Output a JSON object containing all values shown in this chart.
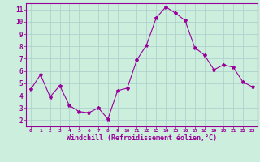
{
  "x": [
    0,
    1,
    2,
    3,
    4,
    5,
    6,
    7,
    8,
    9,
    10,
    11,
    12,
    13,
    14,
    15,
    16,
    17,
    18,
    19,
    20,
    21,
    22,
    23
  ],
  "y": [
    4.5,
    5.7,
    3.9,
    4.8,
    3.2,
    2.7,
    2.6,
    3.0,
    2.1,
    4.4,
    4.6,
    6.9,
    8.1,
    10.3,
    11.2,
    10.7,
    10.1,
    7.9,
    7.3,
    6.1,
    6.5,
    6.3,
    5.1,
    4.7
  ],
  "line_color": "#990099",
  "marker": "*",
  "marker_size": 3,
  "bg_color": "#cceedd",
  "grid_color": "#aacccc",
  "xlabel": "Windchill (Refroidissement éolien,°C)",
  "xlabel_color": "#990099",
  "xtick_color": "#990099",
  "ytick_color": "#990099",
  "ylim": [
    1.5,
    11.5
  ],
  "xlim": [
    -0.5,
    23.5
  ],
  "yticks": [
    2,
    3,
    4,
    5,
    6,
    7,
    8,
    9,
    10,
    11
  ],
  "xticks": [
    0,
    1,
    2,
    3,
    4,
    5,
    6,
    7,
    8,
    9,
    10,
    11,
    12,
    13,
    14,
    15,
    16,
    17,
    18,
    19,
    20,
    21,
    22,
    23
  ],
  "spine_color": "#990099",
  "title": ""
}
